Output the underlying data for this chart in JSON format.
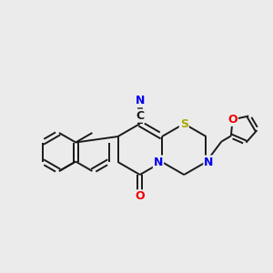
{
  "background_color": "#ebebeb",
  "bond_color": "#1a1a1a",
  "atom_colors": {
    "N": "#0000ee",
    "O": "#ee0000",
    "S": "#aaaa00",
    "C": "#1a1a1a"
  },
  "figsize": [
    3.0,
    3.0
  ],
  "dpi": 100
}
